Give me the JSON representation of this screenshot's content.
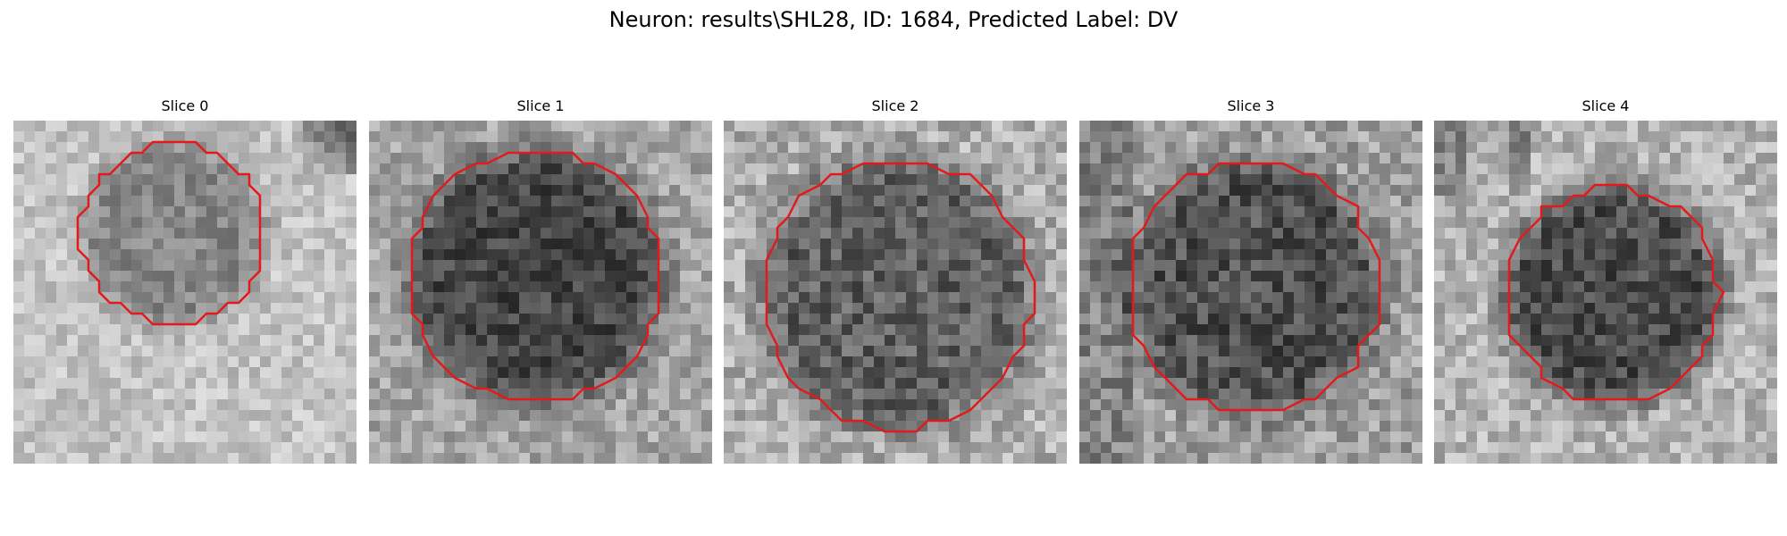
{
  "figure": {
    "title": "Neuron: results\\SHL28, ID: 1684, Predicted Label: DV"
  },
  "panels": [
    {
      "title": "Slice 0"
    },
    {
      "title": "Slice 1"
    },
    {
      "title": "Slice 2"
    },
    {
      "title": "Slice 3"
    },
    {
      "title": "Slice 4"
    }
  ],
  "colors": {
    "contour": "#e31a1c",
    "background": "#ffffff"
  },
  "colormap": "gray"
}
